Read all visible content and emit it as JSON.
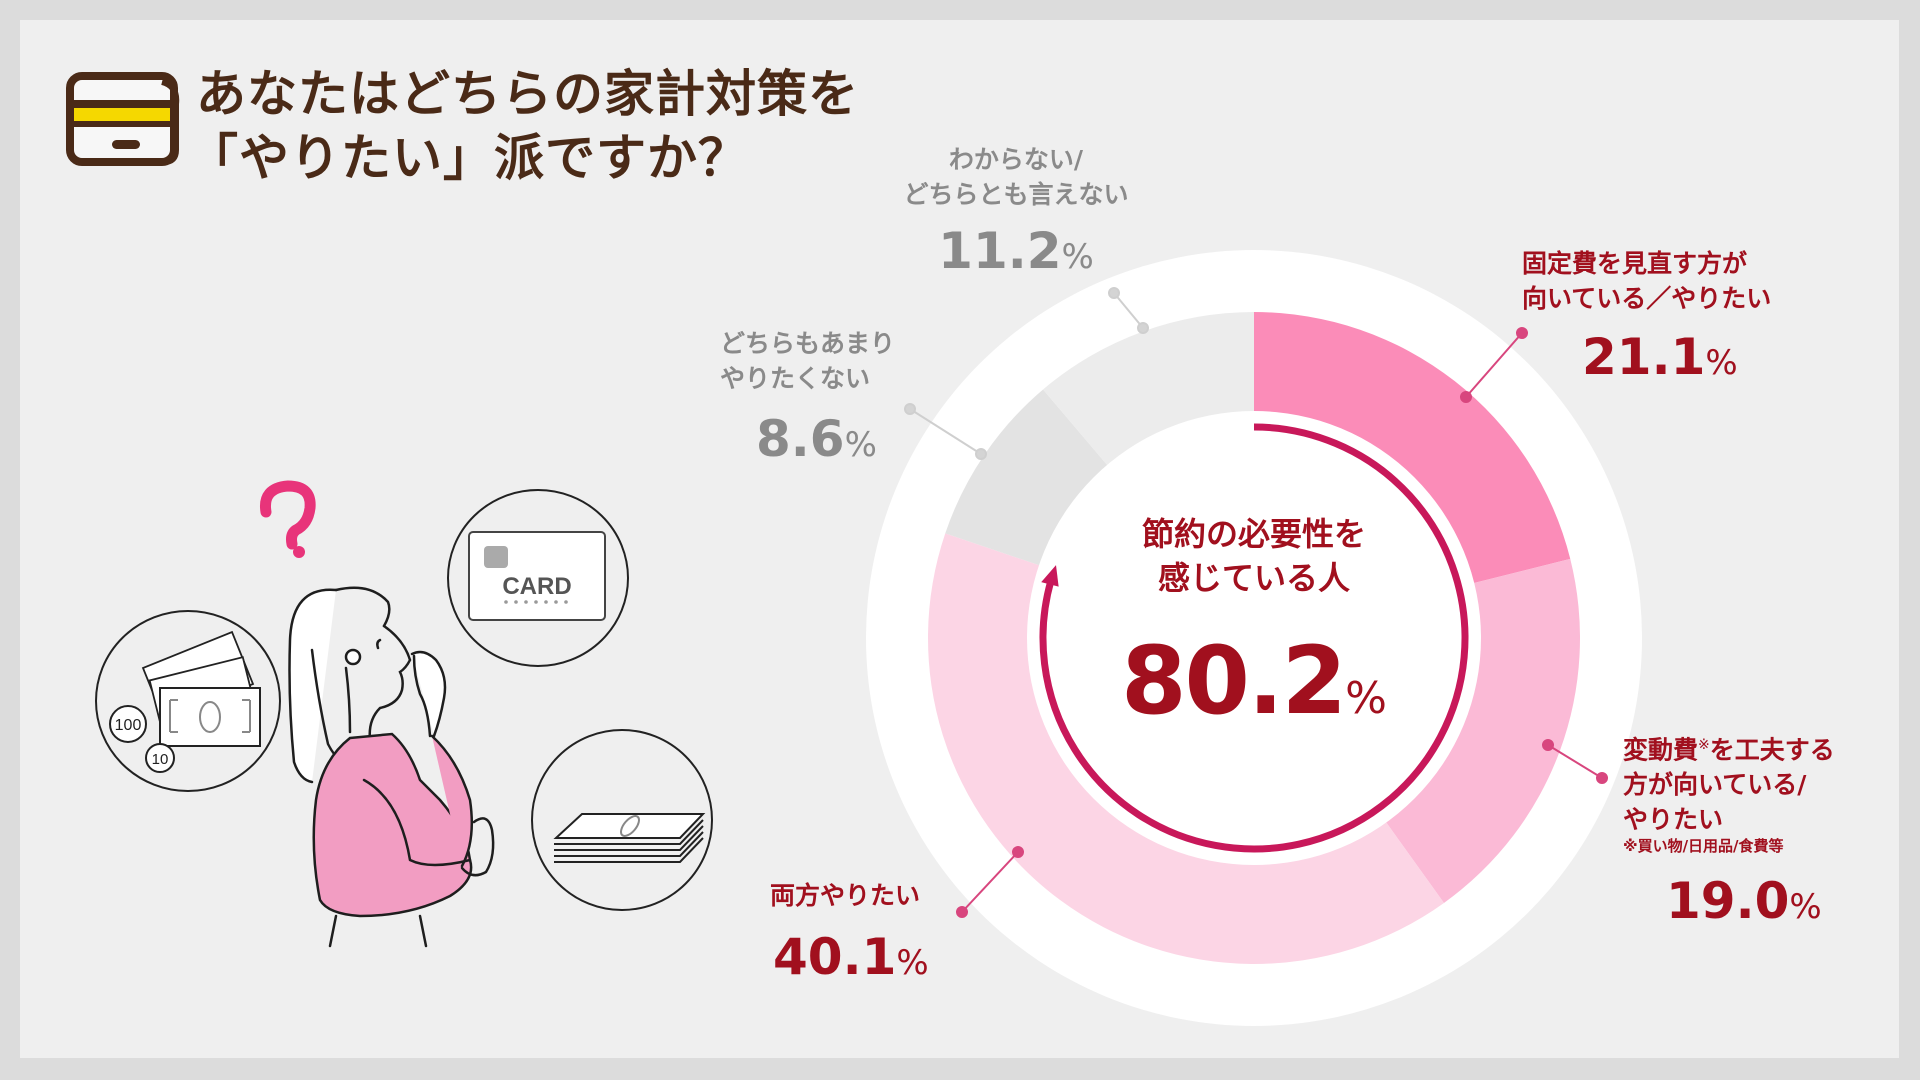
{
  "title": {
    "line1": "あなたはどちらの家計対策を",
    "line2": "「やりたい」派ですか？",
    "icon": "credit-card-icon"
  },
  "center": {
    "label_line1": "節約の必要性を",
    "label_line2": "感じている人",
    "value": "80.2",
    "unit": "%"
  },
  "labels": {
    "fixed": {
      "line1": "固定費を見直す方が",
      "line2": "向いている／やりたい",
      "value": "21.1",
      "unit": "%"
    },
    "variable": {
      "line1": "変動費",
      "mark": "※",
      "line1b": "を工夫する",
      "line2": "方が向いている/",
      "line3": "やりたい",
      "note": "※買い物/日用品/食費等",
      "value": "19.0",
      "unit": "%"
    },
    "both": {
      "line1": "両方やりたい",
      "value": "40.1",
      "unit": "%"
    },
    "neither": {
      "line1": "どちらもあまり",
      "line2": "やりたくない",
      "value": "8.6",
      "unit": "%"
    },
    "unknown": {
      "line1": "わからない/",
      "line2": "どちらとも言えない",
      "value": "11.2",
      "unit": "%"
    }
  },
  "illustration": {
    "card_text": "CARD",
    "coin1": "100",
    "coin2": "10"
  },
  "colors": {
    "fixed": "#fb8cb8",
    "variable": "#fbbad6",
    "both": "#fcd5e5",
    "neither": "#e3e3e3",
    "unknown": "#ececec",
    "accent": "#c8185a",
    "text_red": "#a1101e",
    "title": "#4a2a17"
  },
  "chart_data": {
    "type": "pie",
    "subtype": "donut",
    "title": "あなたはどちらの家計対策を「やりたい」派ですか？",
    "categories": [
      "固定費を見直す方が向いている／やりたい",
      "変動費※を工夫する方が向いている/やりたい",
      "両方やりたい",
      "どちらもあまりやりたくない",
      "わからない/どちらとも言えない"
    ],
    "values": [
      21.1,
      19.0,
      40.1,
      8.6,
      11.2
    ],
    "unit": "%",
    "start_angle": "top (12 o'clock), clockwise",
    "center_annotation": {
      "label": "節約の必要性を感じている人",
      "value": 80.2,
      "unit": "%",
      "covers": [
        "固定費を見直す方が向いている／やりたい",
        "変動費※を工夫する方が向いている/やりたい",
        "両方やりたい"
      ]
    },
    "footnote": "※買い物/日用品/食費等",
    "legend": "none (direct labels)"
  }
}
